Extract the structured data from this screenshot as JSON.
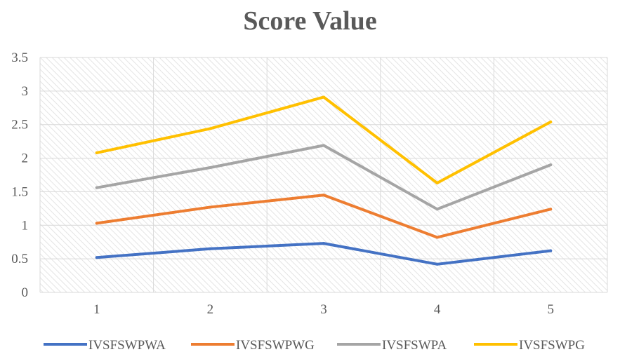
{
  "chart_data": {
    "type": "line",
    "title": "Score Value",
    "xlabel": "",
    "ylabel": "",
    "categories": [
      "1",
      "2",
      "3",
      "4",
      "5"
    ],
    "ylim": [
      0,
      3.5
    ],
    "yticks": [
      "0",
      "0.5",
      "1",
      "1.5",
      "2",
      "2.5",
      "3",
      "3.5"
    ],
    "grid": true,
    "legend_position": "bottom",
    "series": [
      {
        "name": "IVSFSWPWA",
        "color": "#4472C4",
        "values": [
          0.52,
          0.65,
          0.73,
          0.42,
          0.62
        ]
      },
      {
        "name": "IVSFSWPWG",
        "color": "#ED7D31",
        "values": [
          1.03,
          1.27,
          1.45,
          0.82,
          1.24
        ]
      },
      {
        "name": "IVSFSWPA",
        "color": "#A5A5A5",
        "values": [
          1.56,
          1.86,
          2.19,
          1.24,
          1.9
        ]
      },
      {
        "name": "IVSFSWPG",
        "color": "#FFC000",
        "values": [
          2.08,
          2.44,
          2.91,
          1.63,
          2.54
        ]
      }
    ]
  }
}
